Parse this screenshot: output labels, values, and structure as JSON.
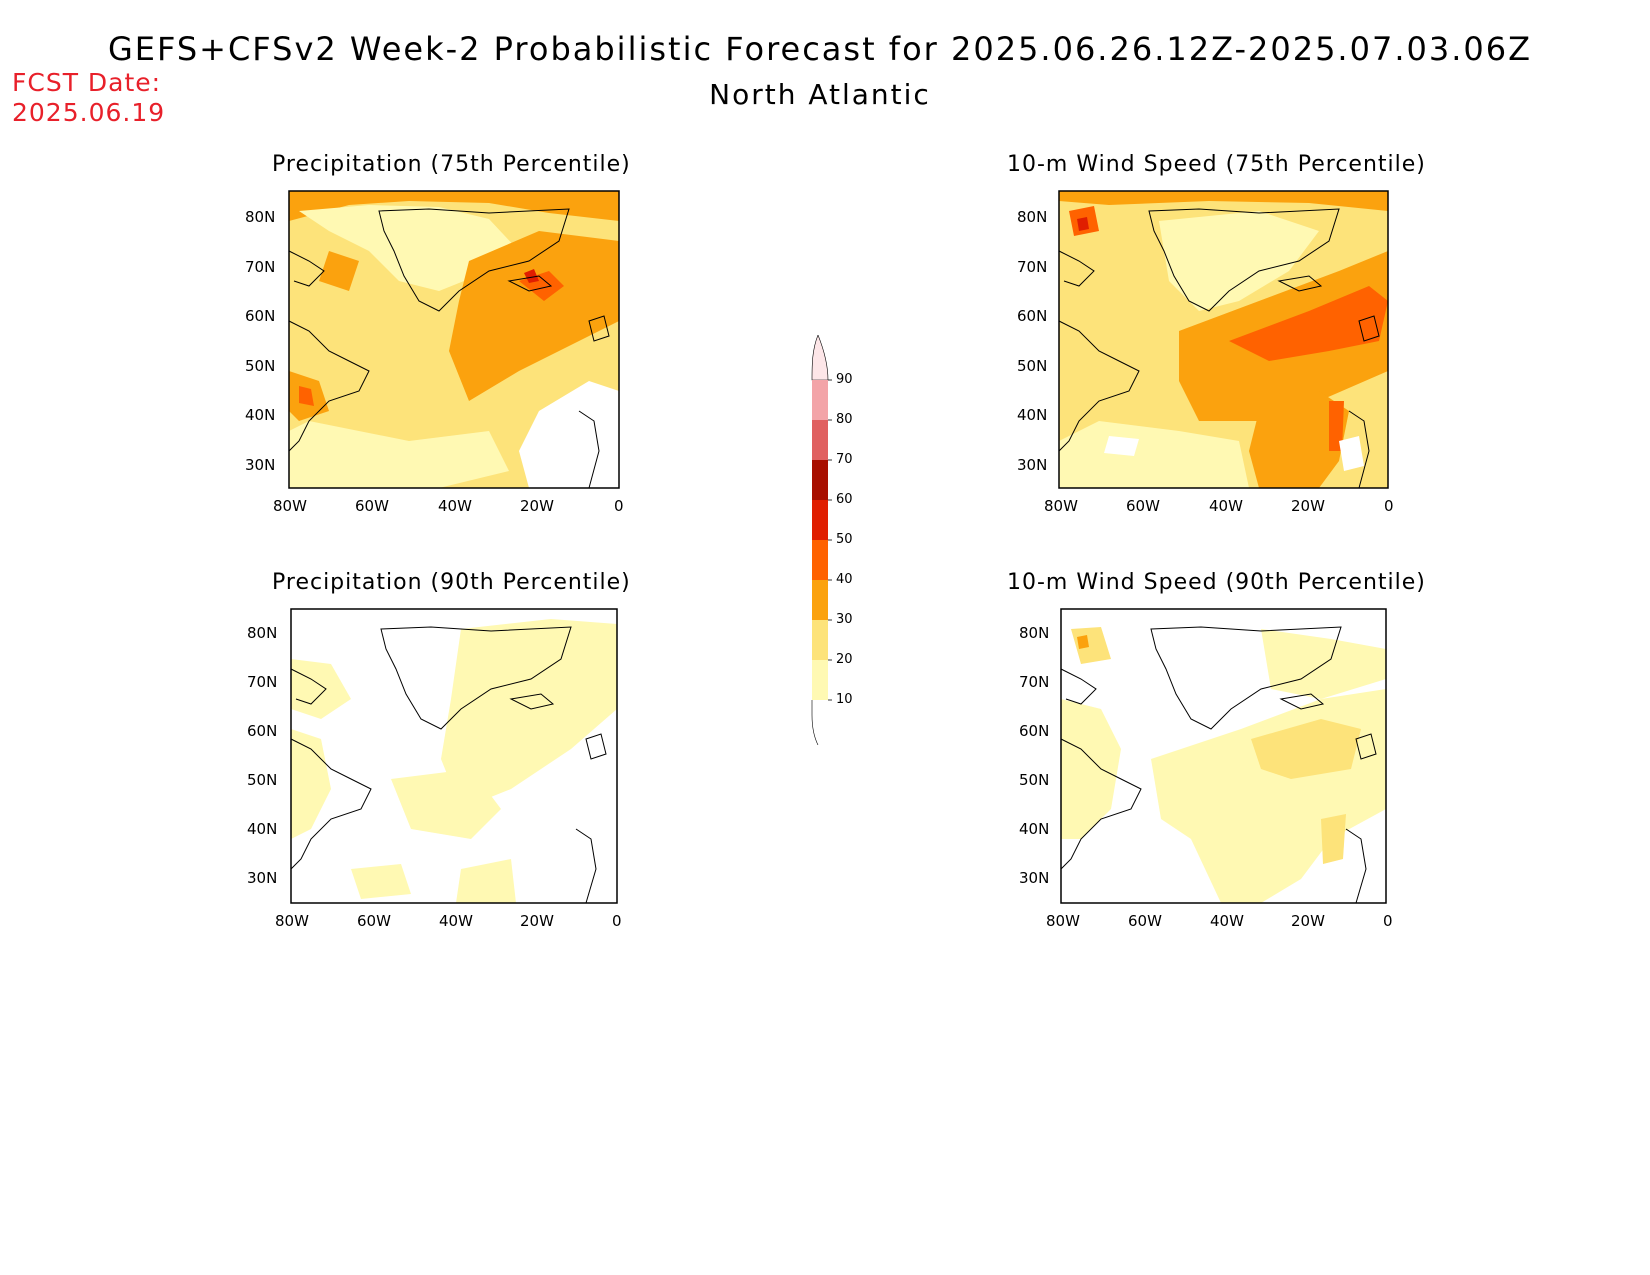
{
  "header": {
    "title": "GEFS+CFSv2 Week-2 Probabilistic Forecast for 2025.06.26.12Z-2025.07.03.06Z",
    "region": "North Atlantic",
    "fcst_label": "FCST Date:",
    "fcst_date": "2025.06.19"
  },
  "colors": {
    "accent_red": "#e8202a",
    "levels": [
      "#fff9b3",
      "#fde37a",
      "#fba20e",
      "#ff6200",
      "#e01e00",
      "#a80f00",
      "#e06060",
      "#f3a4a8",
      "#fde6e8"
    ]
  },
  "panels": [
    {
      "id": "precip-75",
      "title": "Precipitation (75th Percentile)"
    },
    {
      "id": "wind-75",
      "title": "10-m Wind Speed (75th Percentile)"
    },
    {
      "id": "precip-90",
      "title": "Precipitation (90th Percentile)"
    },
    {
      "id": "wind-90",
      "title": "10-m Wind Speed (90th Percentile)"
    }
  ],
  "axes": {
    "lat_ticks": [
      "80N",
      "70N",
      "60N",
      "50N",
      "40N",
      "30N"
    ],
    "lon_ticks": [
      "80W",
      "60W",
      "40W",
      "20W",
      "0"
    ]
  },
  "colorbar": {
    "ticks": [
      "90",
      "80",
      "70",
      "60",
      "50",
      "40",
      "30",
      "20",
      "10"
    ]
  }
}
